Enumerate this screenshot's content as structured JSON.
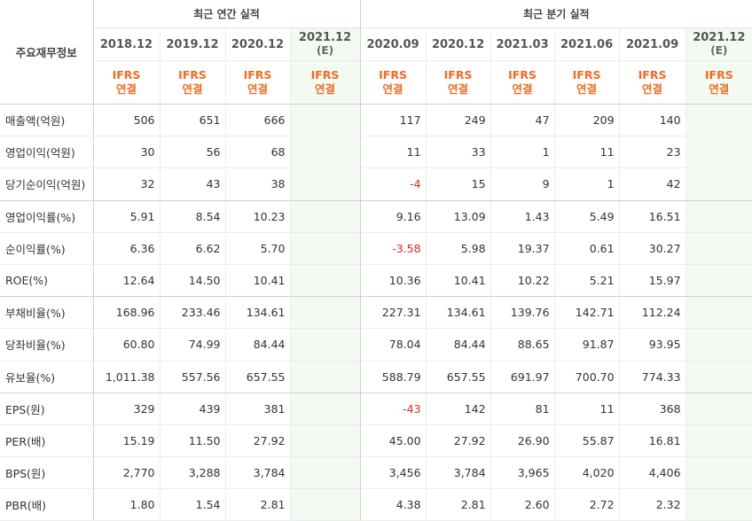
{
  "corner_title": "주요재무정보",
  "annual_group_title": "최근 연간 실적",
  "quarter_group_title": "최근 분기 실적",
  "periods": [
    {
      "date": "2018.12",
      "estimate": "",
      "ifrs_top": "IFRS",
      "ifrs_bottom": "연결"
    },
    {
      "date": "2019.12",
      "estimate": "",
      "ifrs_top": "IFRS",
      "ifrs_bottom": "연결"
    },
    {
      "date": "2020.12",
      "estimate": "",
      "ifrs_top": "IFRS",
      "ifrs_bottom": "연결"
    },
    {
      "date": "2021.12",
      "estimate": "(E)",
      "ifrs_top": "IFRS",
      "ifrs_bottom": "연결"
    },
    {
      "date": "2020.09",
      "estimate": "",
      "ifrs_top": "IFRS",
      "ifrs_bottom": "연결"
    },
    {
      "date": "2020.12",
      "estimate": "",
      "ifrs_top": "IFRS",
      "ifrs_bottom": "연결"
    },
    {
      "date": "2021.03",
      "estimate": "",
      "ifrs_top": "IFRS",
      "ifrs_bottom": "연결"
    },
    {
      "date": "2021.06",
      "estimate": "",
      "ifrs_top": "IFRS",
      "ifrs_bottom": "연결"
    },
    {
      "date": "2021.09",
      "estimate": "",
      "ifrs_top": "IFRS",
      "ifrs_bottom": "연결"
    },
    {
      "date": "2021.12",
      "estimate": "(E)",
      "ifrs_top": "IFRS",
      "ifrs_bottom": "연결"
    }
  ],
  "rows": [
    {
      "label": "매출액(억원)",
      "values": [
        "506",
        "651",
        "666",
        "",
        "117",
        "249",
        "47",
        "209",
        "140",
        ""
      ]
    },
    {
      "label": "영업이익(억원)",
      "values": [
        "30",
        "56",
        "68",
        "",
        "11",
        "33",
        "1",
        "11",
        "23",
        ""
      ]
    },
    {
      "label": "당기순이익(억원)",
      "values": [
        "32",
        "43",
        "38",
        "",
        "-4",
        "15",
        "9",
        "1",
        "42",
        ""
      ]
    },
    {
      "label": "영업이익률(%)",
      "values": [
        "5.91",
        "8.54",
        "10.23",
        "",
        "9.16",
        "13.09",
        "1.43",
        "5.49",
        "16.51",
        ""
      ]
    },
    {
      "label": "순이익률(%)",
      "values": [
        "6.36",
        "6.62",
        "5.70",
        "",
        "-3.58",
        "5.98",
        "19.37",
        "0.61",
        "30.27",
        ""
      ]
    },
    {
      "label": "ROE(%)",
      "values": [
        "12.64",
        "14.50",
        "10.41",
        "",
        "10.36",
        "10.41",
        "10.22",
        "5.21",
        "15.97",
        ""
      ]
    },
    {
      "label": "부채비율(%)",
      "values": [
        "168.96",
        "233.46",
        "134.61",
        "",
        "227.31",
        "134.61",
        "139.76",
        "142.71",
        "112.24",
        ""
      ]
    },
    {
      "label": "당좌비율(%)",
      "values": [
        "60.80",
        "74.99",
        "84.44",
        "",
        "78.04",
        "84.44",
        "88.65",
        "91.87",
        "93.95",
        ""
      ]
    },
    {
      "label": "유보율(%)",
      "values": [
        "1,011.38",
        "557.56",
        "657.55",
        "",
        "588.79",
        "657.55",
        "691.97",
        "700.70",
        "774.33",
        ""
      ]
    },
    {
      "label": "EPS(원)",
      "values": [
        "329",
        "439",
        "381",
        "",
        "-43",
        "142",
        "81",
        "11",
        "368",
        ""
      ]
    },
    {
      "label": "PER(배)",
      "values": [
        "15.19",
        "11.50",
        "27.92",
        "",
        "45.00",
        "27.92",
        "26.90",
        "55.87",
        "16.81",
        ""
      ]
    },
    {
      "label": "BPS(원)",
      "values": [
        "2,770",
        "3,288",
        "3,784",
        "",
        "3,456",
        "3,784",
        "3,965",
        "4,020",
        "4,406",
        ""
      ]
    },
    {
      "label": "PBR(배)",
      "values": [
        "1.80",
        "1.54",
        "2.81",
        "",
        "4.38",
        "2.81",
        "2.60",
        "2.72",
        "2.32",
        ""
      ]
    }
  ],
  "colors": {
    "ifrs_text": "#f36b21",
    "negative": "#e3261a",
    "estimate_bg": "#f3faf1"
  }
}
